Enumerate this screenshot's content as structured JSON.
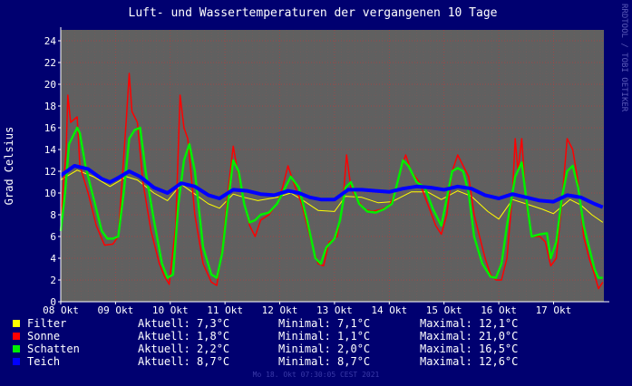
{
  "chart_data": {
    "type": "line",
    "title": "Luft- und Wassertemperaturen der vergangenen 10 Tage",
    "ylabel": "Grad Celsius",
    "xlabel": "",
    "ylim": [
      0,
      25
    ],
    "xlim": [
      0,
      9.92
    ],
    "yticks": [
      "0",
      "2",
      "4",
      "6",
      "8",
      "10",
      "12",
      "14",
      "16",
      "18",
      "20",
      "22",
      "24"
    ],
    "xticks": [
      "08 Okt",
      "09 Okt",
      "10 Okt",
      "11 Okt",
      "12 Okt",
      "13 Okt",
      "14 Okt",
      "15 Okt",
      "16 Okt",
      "17 Okt"
    ],
    "grid": true,
    "legend_position": "bottom",
    "series": [
      {
        "name": "Filter",
        "color": "#ffff00",
        "points": [
          [
            0,
            11.2
          ],
          [
            0.3,
            12.1
          ],
          [
            0.6,
            11.5
          ],
          [
            0.9,
            10.6
          ],
          [
            1.2,
            11.5
          ],
          [
            1.4,
            11.2
          ],
          [
            1.7,
            10.0
          ],
          [
            1.95,
            9.3
          ],
          [
            2.2,
            10.8
          ],
          [
            2.45,
            9.9
          ],
          [
            2.7,
            9.0
          ],
          [
            2.9,
            8.6
          ],
          [
            3.15,
            9.9
          ],
          [
            3.35,
            9.6
          ],
          [
            3.6,
            9.3
          ],
          [
            3.95,
            9.6
          ],
          [
            4.2,
            10.0
          ],
          [
            4.4,
            9.4
          ],
          [
            4.7,
            8.4
          ],
          [
            5.0,
            8.3
          ],
          [
            5.2,
            9.7
          ],
          [
            5.5,
            9.6
          ],
          [
            5.8,
            9.1
          ],
          [
            6.05,
            9.2
          ],
          [
            6.4,
            10.1
          ],
          [
            6.7,
            10.1
          ],
          [
            6.95,
            9.4
          ],
          [
            7.25,
            10.2
          ],
          [
            7.5,
            9.7
          ],
          [
            7.8,
            8.3
          ],
          [
            8.0,
            7.6
          ],
          [
            8.25,
            9.4
          ],
          [
            8.5,
            9.0
          ],
          [
            8.8,
            8.5
          ],
          [
            9.0,
            8.1
          ],
          [
            9.3,
            9.4
          ],
          [
            9.5,
            8.9
          ],
          [
            9.7,
            8.0
          ],
          [
            9.9,
            7.3
          ]
        ]
      },
      {
        "name": "Sonne",
        "color": "#ff0000",
        "points": [
          [
            0,
            7.5
          ],
          [
            0.1,
            14.0
          ],
          [
            0.13,
            19.0
          ],
          [
            0.18,
            16.5
          ],
          [
            0.3,
            17.0
          ],
          [
            0.35,
            12.5
          ],
          [
            0.5,
            10.0
          ],
          [
            0.65,
            7.0
          ],
          [
            0.8,
            5.2
          ],
          [
            0.95,
            5.3
          ],
          [
            1.05,
            6.0
          ],
          [
            1.2,
            17.0
          ],
          [
            1.25,
            21.0
          ],
          [
            1.3,
            17.5
          ],
          [
            1.4,
            16.5
          ],
          [
            1.5,
            11.0
          ],
          [
            1.65,
            6.5
          ],
          [
            1.8,
            3.5
          ],
          [
            1.9,
            2.3
          ],
          [
            1.98,
            1.6
          ],
          [
            2.1,
            7.0
          ],
          [
            2.18,
            19.0
          ],
          [
            2.25,
            16.0
          ],
          [
            2.32,
            15.0
          ],
          [
            2.45,
            8.0
          ],
          [
            2.6,
            3.5
          ],
          [
            2.75,
            1.8
          ],
          [
            2.85,
            1.5
          ],
          [
            2.95,
            5.0
          ],
          [
            3.05,
            10.0
          ],
          [
            3.15,
            14.3
          ],
          [
            3.25,
            11.5
          ],
          [
            3.35,
            9.0
          ],
          [
            3.45,
            7.0
          ],
          [
            3.55,
            6.0
          ],
          [
            3.65,
            7.5
          ],
          [
            3.8,
            8.0
          ],
          [
            3.95,
            9.0
          ],
          [
            4.05,
            10.5
          ],
          [
            4.15,
            12.5
          ],
          [
            4.25,
            11.0
          ],
          [
            4.4,
            9.0
          ],
          [
            4.5,
            7.0
          ],
          [
            4.6,
            5.0
          ],
          [
            4.7,
            3.5
          ],
          [
            4.8,
            3.3
          ],
          [
            4.9,
            5.5
          ],
          [
            5.05,
            6.0
          ],
          [
            5.15,
            9.0
          ],
          [
            5.22,
            13.5
          ],
          [
            5.3,
            10.5
          ],
          [
            5.4,
            9.5
          ],
          [
            5.55,
            8.5
          ],
          [
            5.7,
            8.3
          ],
          [
            5.85,
            8.5
          ],
          [
            6.0,
            8.8
          ],
          [
            6.1,
            10.0
          ],
          [
            6.2,
            12.0
          ],
          [
            6.3,
            13.5
          ],
          [
            6.4,
            12.0
          ],
          [
            6.55,
            11.0
          ],
          [
            6.7,
            9.0
          ],
          [
            6.85,
            7.0
          ],
          [
            6.95,
            6.2
          ],
          [
            7.05,
            8.0
          ],
          [
            7.15,
            12.0
          ],
          [
            7.25,
            13.5
          ],
          [
            7.35,
            12.5
          ],
          [
            7.45,
            11.5
          ],
          [
            7.55,
            8.0
          ],
          [
            7.65,
            6.0
          ],
          [
            7.75,
            4.0
          ],
          [
            7.85,
            2.5
          ],
          [
            7.95,
            2.0
          ],
          [
            8.05,
            2.0
          ],
          [
            8.15,
            4.0
          ],
          [
            8.25,
            10.0
          ],
          [
            8.3,
            15.0
          ],
          [
            8.35,
            12.0
          ],
          [
            8.42,
            15.0
          ],
          [
            8.5,
            9.0
          ],
          [
            8.6,
            6.0
          ],
          [
            8.75,
            6.0
          ],
          [
            8.85,
            5.5
          ],
          [
            8.95,
            3.3
          ],
          [
            9.05,
            4.0
          ],
          [
            9.15,
            9.0
          ],
          [
            9.25,
            15.0
          ],
          [
            9.35,
            14.0
          ],
          [
            9.45,
            11.0
          ],
          [
            9.55,
            6.0
          ],
          [
            9.65,
            4.0
          ],
          [
            9.75,
            2.5
          ],
          [
            9.82,
            1.2
          ],
          [
            9.9,
            1.8
          ]
        ]
      },
      {
        "name": "Schatten",
        "color": "#00ee00",
        "points": [
          [
            0,
            6.5
          ],
          [
            0.08,
            10.0
          ],
          [
            0.15,
            14.5
          ],
          [
            0.25,
            15.5
          ],
          [
            0.3,
            16.0
          ],
          [
            0.35,
            15.5
          ],
          [
            0.45,
            12.5
          ],
          [
            0.6,
            9.5
          ],
          [
            0.75,
            6.5
          ],
          [
            0.85,
            5.8
          ],
          [
            0.95,
            5.8
          ],
          [
            1.05,
            6.0
          ],
          [
            1.15,
            10.0
          ],
          [
            1.25,
            15.0
          ],
          [
            1.35,
            15.8
          ],
          [
            1.45,
            16.0
          ],
          [
            1.55,
            12.0
          ],
          [
            1.7,
            7.5
          ],
          [
            1.85,
            3.5
          ],
          [
            1.95,
            2.2
          ],
          [
            2.05,
            2.5
          ],
          [
            2.15,
            9.0
          ],
          [
            2.25,
            13.0
          ],
          [
            2.35,
            14.5
          ],
          [
            2.45,
            12.0
          ],
          [
            2.6,
            5.0
          ],
          [
            2.75,
            2.5
          ],
          [
            2.85,
            2.2
          ],
          [
            2.95,
            4.5
          ],
          [
            3.05,
            9.0
          ],
          [
            3.15,
            13.0
          ],
          [
            3.25,
            12.0
          ],
          [
            3.35,
            9.0
          ],
          [
            3.45,
            7.3
          ],
          [
            3.55,
            7.5
          ],
          [
            3.65,
            8.0
          ],
          [
            3.8,
            8.2
          ],
          [
            3.95,
            9.0
          ],
          [
            4.1,
            10.5
          ],
          [
            4.2,
            11.5
          ],
          [
            4.35,
            10.5
          ],
          [
            4.5,
            7.5
          ],
          [
            4.65,
            4.0
          ],
          [
            4.75,
            3.5
          ],
          [
            4.85,
            5.0
          ],
          [
            5.0,
            5.8
          ],
          [
            5.1,
            7.5
          ],
          [
            5.2,
            10.5
          ],
          [
            5.3,
            11.0
          ],
          [
            5.45,
            9.0
          ],
          [
            5.6,
            8.3
          ],
          [
            5.75,
            8.2
          ],
          [
            5.9,
            8.5
          ],
          [
            6.05,
            9.0
          ],
          [
            6.15,
            11.0
          ],
          [
            6.25,
            13.0
          ],
          [
            6.35,
            12.5
          ],
          [
            6.5,
            11.0
          ],
          [
            6.65,
            10.5
          ],
          [
            6.8,
            8.5
          ],
          [
            6.95,
            7.0
          ],
          [
            7.05,
            9.5
          ],
          [
            7.15,
            12.0
          ],
          [
            7.25,
            12.3
          ],
          [
            7.35,
            12.0
          ],
          [
            7.45,
            10.0
          ],
          [
            7.55,
            6.0
          ],
          [
            7.7,
            3.5
          ],
          [
            7.85,
            2.3
          ],
          [
            7.95,
            2.2
          ],
          [
            8.05,
            3.5
          ],
          [
            8.15,
            7.0
          ],
          [
            8.3,
            11.5
          ],
          [
            8.42,
            12.8
          ],
          [
            8.5,
            9.5
          ],
          [
            8.6,
            6.0
          ],
          [
            8.75,
            6.2
          ],
          [
            8.88,
            6.3
          ],
          [
            8.95,
            4.0
          ],
          [
            9.05,
            5.5
          ],
          [
            9.15,
            9.5
          ],
          [
            9.25,
            12.0
          ],
          [
            9.35,
            12.5
          ],
          [
            9.45,
            10.5
          ],
          [
            9.55,
            7.0
          ],
          [
            9.65,
            5.0
          ],
          [
            9.75,
            3.0
          ],
          [
            9.82,
            2.2
          ],
          [
            9.9,
            2.2
          ]
        ]
      },
      {
        "name": "Teich",
        "color": "#0000ff",
        "points": [
          [
            0,
            11.6
          ],
          [
            0.25,
            12.5
          ],
          [
            0.5,
            12.2
          ],
          [
            0.75,
            11.3
          ],
          [
            0.9,
            11.0
          ],
          [
            1.05,
            11.4
          ],
          [
            1.25,
            12.0
          ],
          [
            1.45,
            11.5
          ],
          [
            1.7,
            10.5
          ],
          [
            1.95,
            10.0
          ],
          [
            2.2,
            10.9
          ],
          [
            2.45,
            10.6
          ],
          [
            2.7,
            9.8
          ],
          [
            2.9,
            9.5
          ],
          [
            3.15,
            10.3
          ],
          [
            3.4,
            10.2
          ],
          [
            3.65,
            9.9
          ],
          [
            3.9,
            9.8
          ],
          [
            4.15,
            10.2
          ],
          [
            4.35,
            10.0
          ],
          [
            4.55,
            9.6
          ],
          [
            4.75,
            9.4
          ],
          [
            5.0,
            9.4
          ],
          [
            5.25,
            10.3
          ],
          [
            5.5,
            10.3
          ],
          [
            5.75,
            10.2
          ],
          [
            6.0,
            10.1
          ],
          [
            6.25,
            10.4
          ],
          [
            6.5,
            10.6
          ],
          [
            6.75,
            10.5
          ],
          [
            7.0,
            10.3
          ],
          [
            7.25,
            10.6
          ],
          [
            7.5,
            10.4
          ],
          [
            7.75,
            9.8
          ],
          [
            8.0,
            9.5
          ],
          [
            8.25,
            9.9
          ],
          [
            8.5,
            9.6
          ],
          [
            8.75,
            9.3
          ],
          [
            9.0,
            9.2
          ],
          [
            9.25,
            9.8
          ],
          [
            9.5,
            9.6
          ],
          [
            9.75,
            9.0
          ],
          [
            9.9,
            8.7
          ]
        ]
      }
    ]
  },
  "legend": [
    {
      "name": "Filter",
      "color": "#ffff00",
      "current": "Aktuell: 7,3°C",
      "minimum": "Minimal: 7,1°C",
      "maximum": "Maximal: 12,1°C"
    },
    {
      "name": "Sonne",
      "color": "#ff0000",
      "current": "Aktuell: 1,8°C",
      "minimum": "Minimal: 1,1°C",
      "maximum": "Maximal: 21,0°C"
    },
    {
      "name": "Schatten",
      "color": "#00ee00",
      "current": "Aktuell: 2,2°C",
      "minimum": "Minimal: 2,0°C",
      "maximum": "Maximal: 16,5°C"
    },
    {
      "name": "Teich",
      "color": "#0000ff",
      "current": "Aktuell: 8,7°C",
      "minimum": "Minimal: 8,7°C",
      "maximum": "Maximal: 12,6°C"
    }
  ],
  "timestamp": "Mo 18. Okt 07:30:05 CEST 2021",
  "side_text": "RRDTOOL / TOBI OETIKER"
}
